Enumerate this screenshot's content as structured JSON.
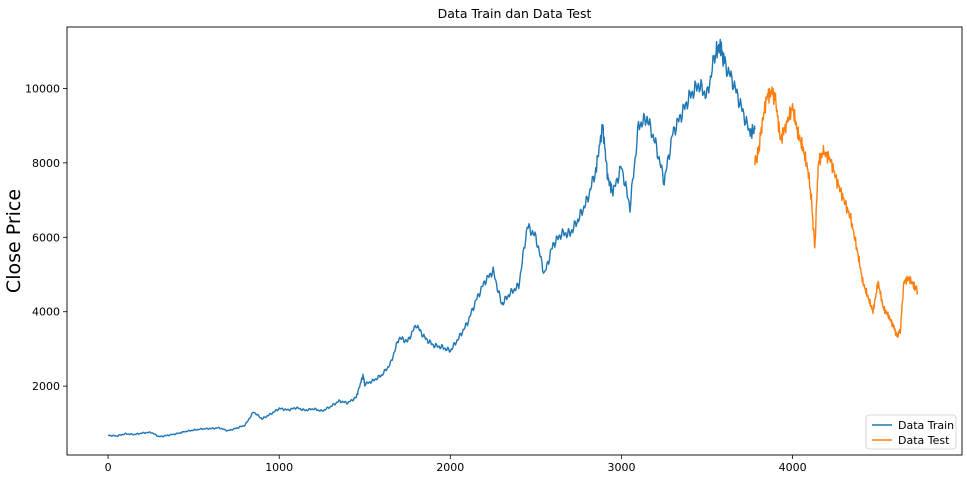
{
  "chart_data": {
    "type": "line",
    "title": "Data Train dan Data Test",
    "xlabel": "",
    "ylabel": "Close Price",
    "xlim": [
      -240,
      4990
    ],
    "ylim": [
      150,
      11650
    ],
    "xticks": [
      0,
      1000,
      2000,
      3000,
      4000
    ],
    "yticks": [
      2000,
      4000,
      6000,
      8000,
      10000
    ],
    "grid": false,
    "legend": "lower-right",
    "series": [
      {
        "name": "Data Train",
        "color": "#1f77b4",
        "points": [
          [
            0,
            680
          ],
          [
            50,
            660
          ],
          [
            100,
            720
          ],
          [
            150,
            700
          ],
          [
            200,
            740
          ],
          [
            250,
            760
          ],
          [
            300,
            640
          ],
          [
            350,
            680
          ],
          [
            400,
            720
          ],
          [
            450,
            780
          ],
          [
            500,
            820
          ],
          [
            550,
            850
          ],
          [
            600,
            860
          ],
          [
            650,
            880
          ],
          [
            700,
            800
          ],
          [
            750,
            870
          ],
          [
            800,
            950
          ],
          [
            850,
            1310
          ],
          [
            900,
            1120
          ],
          [
            950,
            1250
          ],
          [
            1000,
            1400
          ],
          [
            1050,
            1360
          ],
          [
            1100,
            1420
          ],
          [
            1150,
            1350
          ],
          [
            1200,
            1390
          ],
          [
            1250,
            1330
          ],
          [
            1300,
            1450
          ],
          [
            1350,
            1600
          ],
          [
            1400,
            1550
          ],
          [
            1450,
            1700
          ],
          [
            1490,
            2300
          ],
          [
            1500,
            2050
          ],
          [
            1550,
            2150
          ],
          [
            1600,
            2300
          ],
          [
            1650,
            2600
          ],
          [
            1700,
            3300
          ],
          [
            1750,
            3200
          ],
          [
            1800,
            3650
          ],
          [
            1850,
            3300
          ],
          [
            1900,
            3100
          ],
          [
            1950,
            3050
          ],
          [
            2000,
            2950
          ],
          [
            2050,
            3300
          ],
          [
            2100,
            3700
          ],
          [
            2150,
            4300
          ],
          [
            2200,
            4800
          ],
          [
            2250,
            5100
          ],
          [
            2300,
            4200
          ],
          [
            2350,
            4500
          ],
          [
            2400,
            4700
          ],
          [
            2450,
            6300
          ],
          [
            2500,
            6000
          ],
          [
            2550,
            5000
          ],
          [
            2600,
            5800
          ],
          [
            2650,
            6100
          ],
          [
            2700,
            6100
          ],
          [
            2750,
            6500
          ],
          [
            2800,
            7000
          ],
          [
            2850,
            7800
          ],
          [
            2890,
            9000
          ],
          [
            2920,
            7600
          ],
          [
            2950,
            7200
          ],
          [
            3000,
            7900
          ],
          [
            3050,
            6800
          ],
          [
            3100,
            9000
          ],
          [
            3150,
            9200
          ],
          [
            3200,
            8500
          ],
          [
            3250,
            7500
          ],
          [
            3300,
            8800
          ],
          [
            3350,
            9300
          ],
          [
            3400,
            9800
          ],
          [
            3450,
            10100
          ],
          [
            3500,
            9800
          ],
          [
            3550,
            11000
          ],
          [
            3580,
            11100
          ],
          [
            3600,
            10700
          ],
          [
            3650,
            10200
          ],
          [
            3700,
            9500
          ],
          [
            3750,
            8800
          ],
          [
            3780,
            8900
          ]
        ]
      },
      {
        "name": "Data Test",
        "color": "#ff7f0e",
        "points": [
          [
            3780,
            8000
          ],
          [
            3800,
            8300
          ],
          [
            3820,
            9000
          ],
          [
            3850,
            9800
          ],
          [
            3880,
            9900
          ],
          [
            3900,
            9700
          ],
          [
            3930,
            8600
          ],
          [
            3960,
            9000
          ],
          [
            4000,
            9500
          ],
          [
            4030,
            8800
          ],
          [
            4060,
            8400
          ],
          [
            4090,
            7800
          ],
          [
            4110,
            7000
          ],
          [
            4130,
            5700
          ],
          [
            4150,
            8000
          ],
          [
            4180,
            8300
          ],
          [
            4220,
            8100
          ],
          [
            4260,
            7500
          ],
          [
            4300,
            7000
          ],
          [
            4340,
            6500
          ],
          [
            4380,
            5600
          ],
          [
            4410,
            4800
          ],
          [
            4440,
            4400
          ],
          [
            4470,
            4000
          ],
          [
            4500,
            4800
          ],
          [
            4530,
            4100
          ],
          [
            4560,
            3900
          ],
          [
            4590,
            3600
          ],
          [
            4610,
            3350
          ],
          [
            4630,
            3500
          ],
          [
            4650,
            4800
          ],
          [
            4680,
            4900
          ],
          [
            4710,
            4700
          ],
          [
            4730,
            4550
          ]
        ]
      }
    ]
  }
}
